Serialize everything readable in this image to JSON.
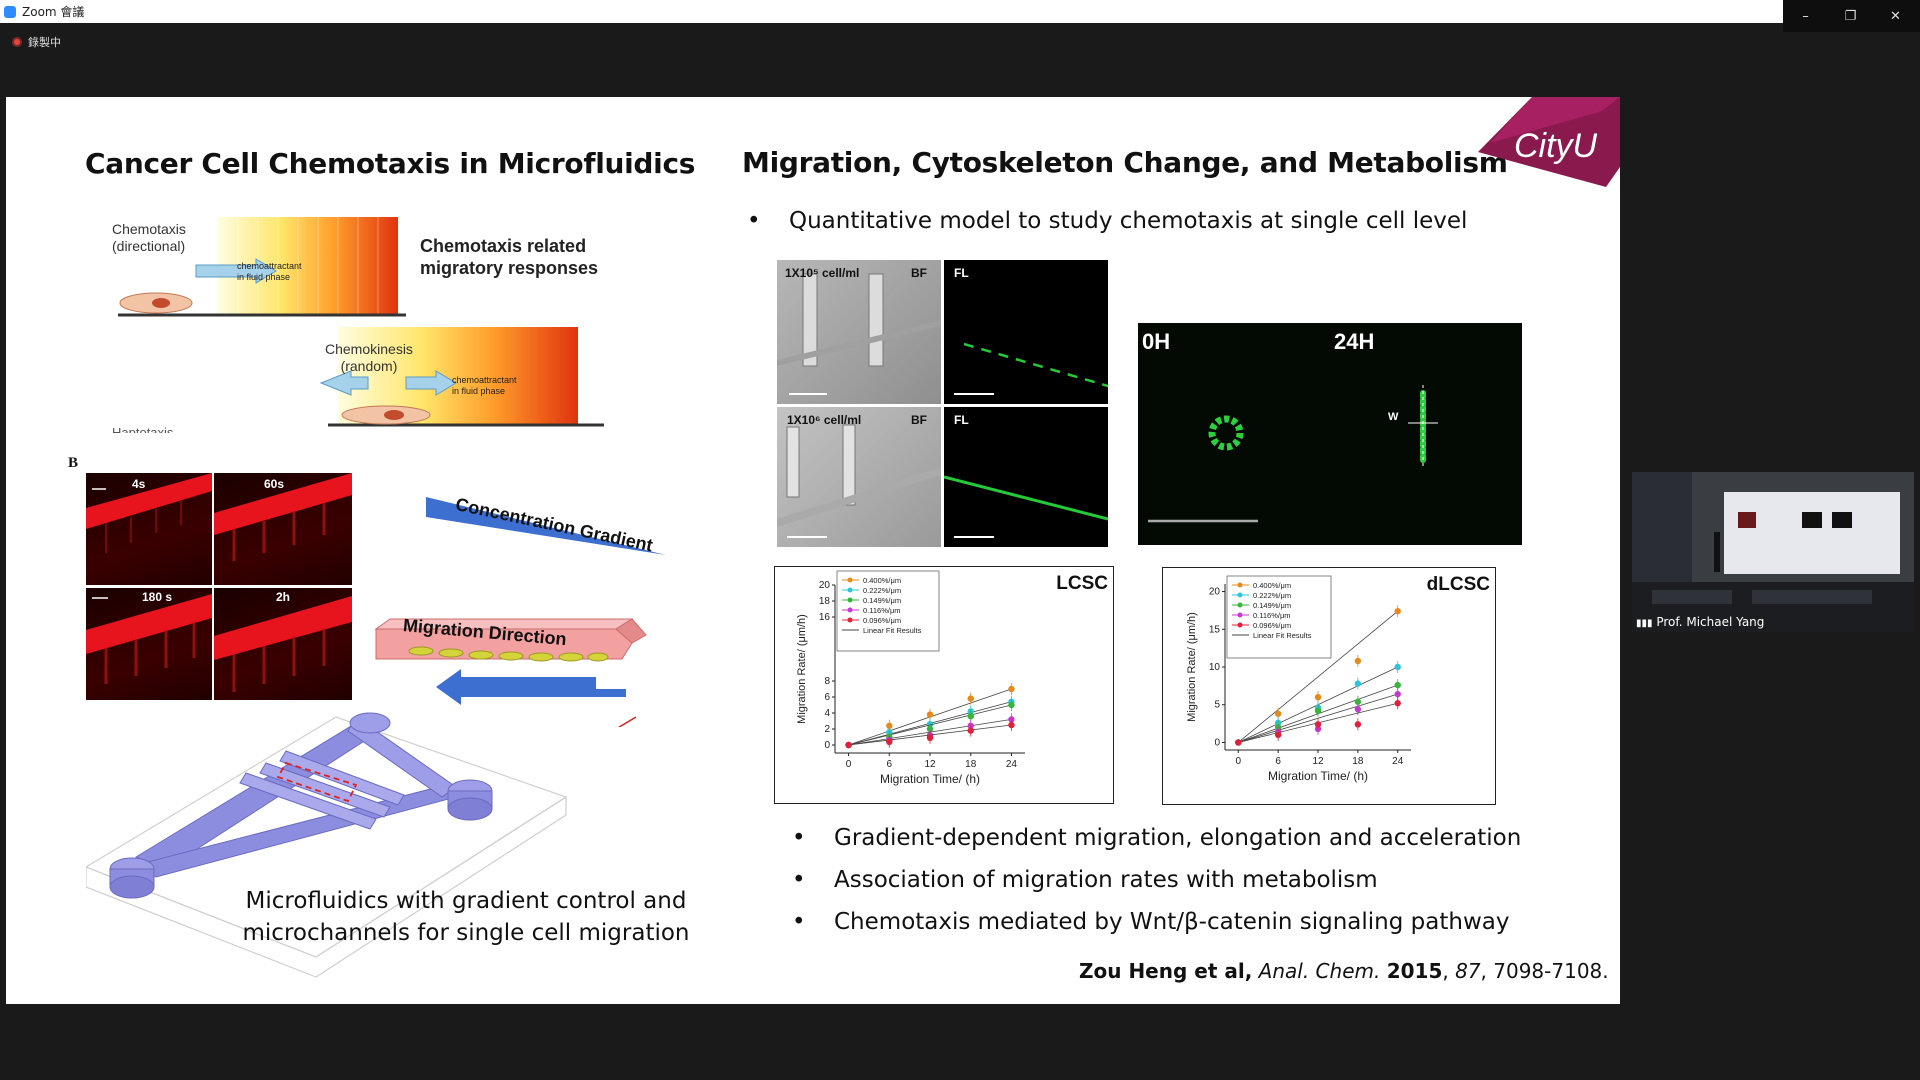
{
  "window": {
    "title": "Zoom 會議",
    "recording_label": "錄製中",
    "controls": [
      "–",
      "❐",
      "✕"
    ]
  },
  "slide": {
    "left_title": "Cancer Cell Chemotaxis in Microfluidics",
    "right_title": "Migration, Cytoskeleton Change, and Metabolism",
    "logo_text": "CityU",
    "top_bullet": "Quantitative model to study chemotaxis at single cell level",
    "schematic": {
      "chemotaxis": "Chemotaxis\n(directional)",
      "chemokinesis": "Chemokinesis\n(random)",
      "chemoattractant": "chemoattractant\nin fluid phase",
      "responses": "Chemotaxis related\nmigratory responses",
      "haptotaxis_cut": "Haptotaxis"
    },
    "panel_b": {
      "label": "B",
      "times": [
        "4s",
        "60s",
        "180 s",
        "2h"
      ],
      "concentration": "Concentration Gradient",
      "direction": "Migration Direction"
    },
    "bf_fl": {
      "row1_label": "1X10⁵ cell/ml",
      "row2_label": "1X10⁶ cell/ml",
      "bf": "BF",
      "fl": "FL"
    },
    "time_panel": {
      "t0": "0H",
      "t24": "24H",
      "w": "W"
    },
    "bullets": [
      "Gradient-dependent migration, elongation and acceleration",
      "Association of migration rates with metabolism",
      "Chemotaxis mediated by Wnt/β-catenin signaling pathway"
    ],
    "caption": "Microfluidics with gradient control and\nmicrochannels for single cell migration",
    "citation": {
      "authors": "Zou Heng et al,",
      "journal": "Anal. Chem.",
      "year": "2015",
      "volume": "87",
      "pages": ", 7098-7108."
    }
  },
  "chart_data": [
    {
      "type": "scatter",
      "title": "LCSC",
      "xlabel": "Migration Time/ (h)",
      "ylabel": "Migration Rate/ (μm/h)",
      "x": [
        0,
        6,
        12,
        18,
        24
      ],
      "xticks": [
        "0",
        "6",
        "12",
        "18",
        "24"
      ],
      "yticks": [
        "0",
        "2",
        "4",
        "6",
        "8",
        "16",
        "18",
        "20"
      ],
      "legend": [
        "0.400%/μm",
        "0.222%/μm",
        "0.149%/μm",
        "0.116%/μm",
        "0.096%/μm",
        "Linear Fit Results"
      ],
      "series": [
        {
          "name": "0.400%/μm",
          "color": "#e8891c",
          "values": [
            0,
            2.4,
            3.8,
            5.8,
            7.0
          ]
        },
        {
          "name": "0.222%/μm",
          "color": "#2ec4d8",
          "values": [
            0,
            1.6,
            2.6,
            4.2,
            5.4
          ]
        },
        {
          "name": "0.149%/μm",
          "color": "#35b53a",
          "values": [
            0,
            1.0,
            2.0,
            3.6,
            5.0
          ]
        },
        {
          "name": "0.116%/μm",
          "color": "#c63ad0",
          "values": [
            0,
            0.6,
            1.2,
            2.4,
            3.2
          ]
        },
        {
          "name": "0.096%/μm",
          "color": "#e0213a",
          "values": [
            0,
            0.4,
            0.9,
            1.8,
            2.5
          ]
        }
      ]
    },
    {
      "type": "scatter",
      "title": "dLCSC",
      "xlabel": "Migration Time/ (h)",
      "ylabel": "Migration Rate/ (μm/h)",
      "x": [
        0,
        6,
        12,
        18,
        24
      ],
      "xticks": [
        "0",
        "6",
        "12",
        "18",
        "24"
      ],
      "yticks": [
        "0",
        "5",
        "10",
        "15",
        "20"
      ],
      "ylim": [
        -1,
        21
      ],
      "legend": [
        "0.400%/μm",
        "0.222%/μm",
        "0.149%/μm",
        "0.116%/μm",
        "0.096%/μm",
        "Linear Fit Results"
      ],
      "series": [
        {
          "name": "0.400%/μm",
          "color": "#e8891c",
          "values": [
            0,
            3.8,
            6.0,
            10.8,
            17.4
          ]
        },
        {
          "name": "0.222%/μm",
          "color": "#2ec4d8",
          "values": [
            0,
            2.6,
            4.6,
            7.8,
            10.0
          ]
        },
        {
          "name": "0.149%/μm",
          "color": "#35b53a",
          "values": [
            0,
            2.0,
            4.2,
            5.4,
            7.6
          ]
        },
        {
          "name": "0.116%/μm",
          "color": "#c63ad0",
          "values": [
            0,
            1.4,
            1.8,
            4.4,
            6.4
          ]
        },
        {
          "name": "0.096%/μm",
          "color": "#e0213a",
          "values": [
            0,
            1.0,
            2.4,
            2.4,
            5.2
          ]
        }
      ]
    }
  ],
  "webcam": {
    "name": "Prof. Michael Yang"
  }
}
